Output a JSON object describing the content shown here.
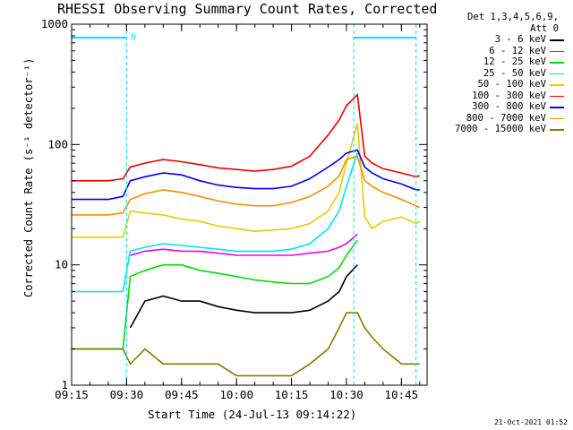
{
  "chart_data": {
    "type": "line",
    "title": "RHESSI Observing Summary Count Rates, Corrected",
    "xlabel": "Start Time (24-Jul-13 09:14:22)",
    "ylabel": "Corrected Count Rate (s⁻¹ detector⁻¹)",
    "y_scale": "log",
    "ylim": [
      1,
      1000
    ],
    "xlim": [
      "09:15",
      "10:52"
    ],
    "x_ticks": [
      "09:15",
      "09:30",
      "09:45",
      "10:00",
      "10:15",
      "10:30",
      "10:45"
    ],
    "y_ticks": [
      "1",
      "10",
      "100",
      "1000"
    ],
    "legend_header": [
      "Det 1,3,4,5,6,9,",
      "Att 0"
    ],
    "legend_position": "right",
    "footer": "21-Oct-2021 01:52",
    "flag_label": "N",
    "flag_color": "#00e5ee",
    "vertical_markers": [
      "09:30",
      "10:32",
      "10:49"
    ],
    "x": [
      "09:15",
      "09:20",
      "09:25",
      "09:29",
      "09:31",
      "09:35",
      "09:40",
      "09:45",
      "09:50",
      "09:55",
      "10:00",
      "10:05",
      "10:10",
      "10:15",
      "10:20",
      "10:25",
      "10:28",
      "10:30",
      "10:33",
      "10:35",
      "10:37",
      "10:40",
      "10:45",
      "10:49",
      "10:50"
    ],
    "series": [
      {
        "name": "3 - 6 keV",
        "color": "#000000",
        "values": [
          null,
          null,
          null,
          null,
          3,
          5,
          5.5,
          5,
          5,
          4.5,
          4.2,
          4,
          4,
          4,
          4.2,
          5,
          6,
          8,
          10,
          null,
          null,
          null,
          null,
          null,
          null
        ]
      },
      {
        "name": "6 - 12 keV",
        "color": "#ee00ee",
        "values": [
          null,
          null,
          null,
          null,
          12,
          13,
          13.5,
          13,
          13,
          12.5,
          12,
          12,
          12,
          12,
          12.5,
          13,
          14,
          15,
          18,
          null,
          null,
          null,
          null,
          null,
          null
        ]
      },
      {
        "name": "12 - 25 keV",
        "color": "#00dd00",
        "values": [
          2,
          2,
          2,
          2,
          8,
          9,
          10,
          10,
          9,
          8.5,
          8,
          7.5,
          7.2,
          7,
          7,
          8,
          9.5,
          12,
          16,
          null,
          null,
          null,
          null,
          null,
          null
        ]
      },
      {
        "name": "25 - 50 keV",
        "color": "#00e5ee",
        "values": [
          6,
          6,
          6,
          6,
          13,
          14,
          15,
          14.5,
          14,
          13.5,
          13,
          13,
          13,
          13.5,
          15,
          20,
          28,
          45,
          85,
          null,
          null,
          null,
          null,
          null,
          null
        ]
      },
      {
        "name": "50 - 100 keV",
        "color": "#e0d000",
        "values": [
          17,
          17,
          17,
          17,
          28,
          27,
          26,
          24,
          23,
          21,
          20,
          19,
          19.5,
          20,
          22,
          28,
          40,
          70,
          150,
          25,
          20,
          23,
          25,
          22,
          23
        ]
      },
      {
        "name": "100 - 300 keV",
        "color": "#ee0000",
        "values": [
          50,
          50,
          50,
          52,
          65,
          70,
          75,
          72,
          68,
          64,
          62,
          60,
          62,
          66,
          80,
          120,
          160,
          210,
          260,
          80,
          70,
          63,
          58,
          54,
          55
        ]
      },
      {
        "name": "300 - 800 keV",
        "color": "#0000ee",
        "values": [
          35,
          35,
          35,
          37,
          50,
          54,
          58,
          56,
          50,
          46,
          44,
          43,
          43,
          45,
          52,
          65,
          75,
          85,
          90,
          65,
          58,
          52,
          47,
          42,
          42
        ]
      },
      {
        "name": "800 - 7000 keV",
        "color": "#ff8c00",
        "values": [
          26,
          26,
          26,
          27,
          35,
          39,
          42,
          40,
          37,
          34,
          32,
          31,
          31,
          33,
          37,
          45,
          55,
          75,
          80,
          50,
          45,
          40,
          35,
          31,
          30
        ]
      },
      {
        "name": "7000 - 15000 keV",
        "color": "#808000",
        "values": [
          2,
          2,
          2,
          2,
          1.5,
          2,
          1.5,
          1.5,
          1.5,
          1.5,
          1.2,
          1.2,
          1.2,
          1.2,
          1.5,
          2,
          3,
          4,
          4,
          3,
          2.5,
          2,
          1.5,
          1.5,
          1.5
        ]
      }
    ]
  }
}
